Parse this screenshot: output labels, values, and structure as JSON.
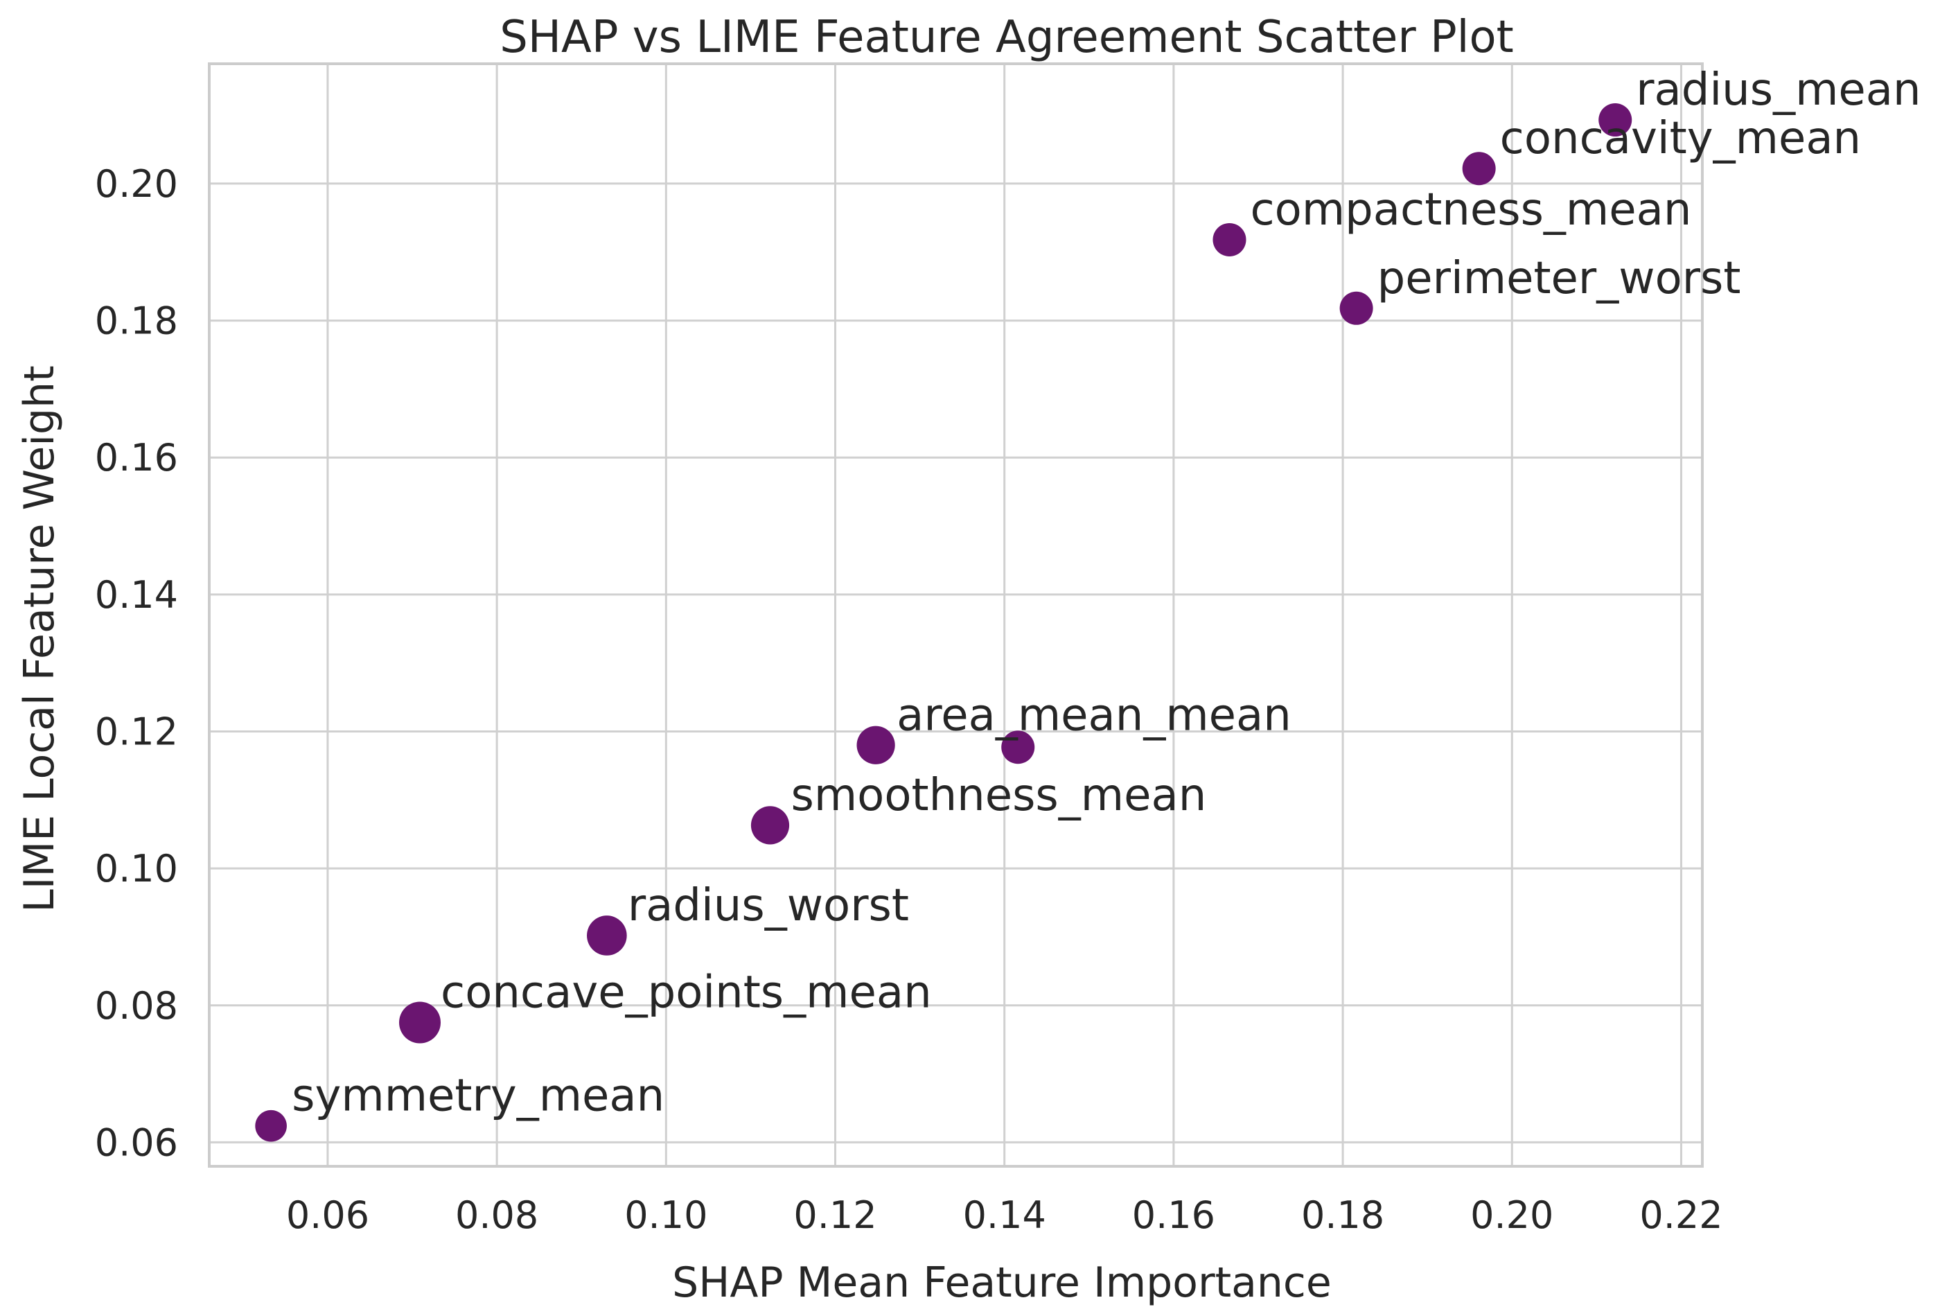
{
  "chart_data": {
    "type": "scatter",
    "title": "SHAP vs LIME Feature Agreement Scatter Plot",
    "xlabel": "SHAP Mean Feature Importance",
    "ylabel": "LIME Local Feature Weight",
    "xlim": [
      0.046,
      0.2225
    ],
    "ylim": [
      0.0565,
      0.2175
    ],
    "xticks": [
      "0.06",
      "0.08",
      "0.10",
      "0.12",
      "0.14",
      "0.16",
      "0.18",
      "0.20",
      "0.22"
    ],
    "xtick_values": [
      0.06,
      0.08,
      0.1,
      0.12,
      0.14,
      0.16,
      0.18,
      0.2,
      0.22
    ],
    "yticks": [
      "0.06",
      "0.08",
      "0.10",
      "0.12",
      "0.14",
      "0.16",
      "0.18",
      "0.20"
    ],
    "ytick_values": [
      0.06,
      0.08,
      0.1,
      0.12,
      0.14,
      0.16,
      0.18,
      0.2
    ],
    "grid": true,
    "point_color": "#6a1570",
    "points": [
      {
        "label": "radius_mean",
        "x": 0.2122,
        "y": 0.2093,
        "size": 1.0
      },
      {
        "label": "concavity_mean",
        "x": 0.1961,
        "y": 0.2022,
        "size": 1.0
      },
      {
        "label": "compactness_mean",
        "x": 0.1666,
        "y": 0.1918,
        "size": 1.0
      },
      {
        "label": "perimeter_worst",
        "x": 0.1816,
        "y": 0.1818,
        "size": 1.0
      },
      {
        "label": "area_mean_mean",
        "x": 0.1248,
        "y": 0.118,
        "size": 1.15
      },
      {
        "label": "",
        "x": 0.1416,
        "y": 0.1177,
        "size": 1.0
      },
      {
        "label": "smoothness_mean",
        "x": 0.1123,
        "y": 0.1063,
        "size": 1.15
      },
      {
        "label": "radius_worst",
        "x": 0.093,
        "y": 0.0902,
        "size": 1.2
      },
      {
        "label": "concave_points_mean",
        "x": 0.0709,
        "y": 0.0775,
        "size": 1.25
      },
      {
        "label": "symmetry_mean",
        "x": 0.0533,
        "y": 0.0624,
        "size": 0.95
      }
    ]
  }
}
